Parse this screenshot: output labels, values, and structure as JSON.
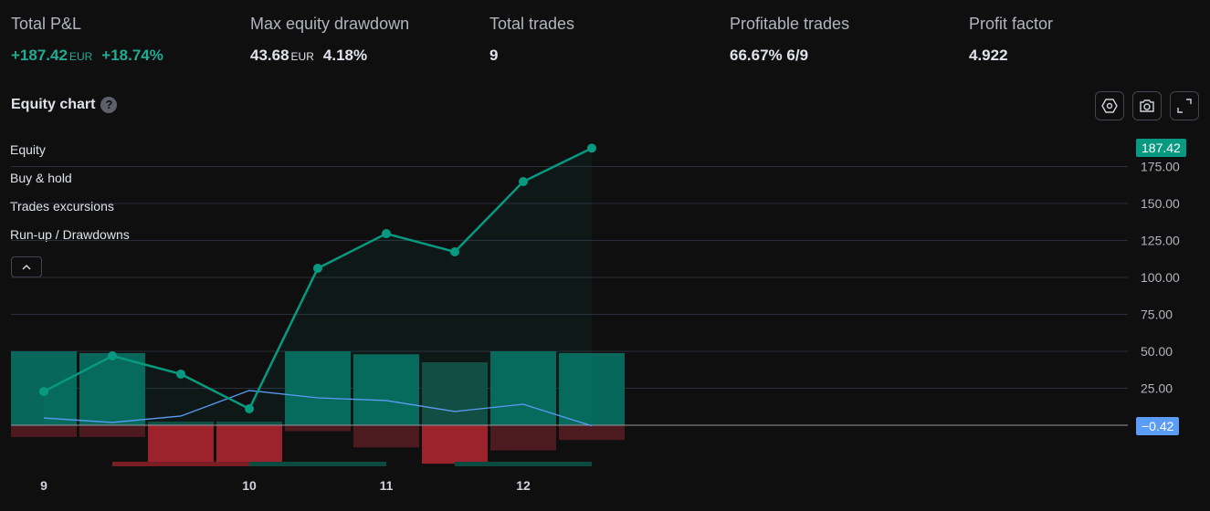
{
  "stats": [
    {
      "label": "Total P&L",
      "value": "+187.42",
      "currency": "EUR",
      "extra": "+18.74%",
      "positive": true
    },
    {
      "label": "Max equity drawdown",
      "value": "43.68",
      "currency": "EUR",
      "extra": "4.18%"
    },
    {
      "label": "Total trades",
      "value": "9"
    },
    {
      "label": "Profitable trades",
      "value": "66.67%",
      "extra": "6/9"
    },
    {
      "label": "Profit factor",
      "value": "4.922"
    }
  ],
  "chart_title": "Equity chart",
  "help": "?",
  "legend": [
    "Equity",
    "Buy & hold",
    "Trades excursions",
    "Run-up / Drawdowns"
  ],
  "badges": {
    "equity": "187.42",
    "buyhold": "−0.42"
  },
  "colors": {
    "equity": "#089981",
    "buyhold": "#5b9cf6",
    "runup": "#06675a",
    "runup_loss": "#124a40",
    "dd": "#4d1a1f",
    "dd_loss": "#9c222b"
  },
  "chart_data": {
    "type": "line",
    "x_labels": [
      {
        "i": 0,
        "label": "9"
      },
      {
        "i": 3,
        "label": "10"
      },
      {
        "i": 5,
        "label": "11"
      },
      {
        "i": 7,
        "label": "12"
      }
    ],
    "y_ticks": [
      "175.00",
      "150.00",
      "125.00",
      "100.00",
      "75.00",
      "50.00",
      "25.00"
    ],
    "y_tick_values": [
      175,
      150,
      125,
      100,
      75,
      50,
      25
    ],
    "ylim": [
      -35,
      195
    ],
    "equity": [
      22.8,
      46.9,
      34.6,
      11.1,
      106.2,
      129.6,
      117.3,
      164.8,
      187.42
    ],
    "buy_hold": [
      4.9,
      1.9,
      6.2,
      23.5,
      18.5,
      16.7,
      9.3,
      14.2,
      -0.42
    ],
    "runup": [
      50,
      48.8,
      2.5,
      2.5,
      50,
      48,
      42.6,
      50,
      48.8
    ],
    "drawdown": [
      -8,
      -8,
      -26,
      -26,
      -4,
      -15,
      -26,
      -17,
      -10
    ],
    "losing": [
      false,
      false,
      true,
      true,
      false,
      false,
      true,
      false,
      false
    ],
    "periods": [
      {
        "from": 1,
        "to": 3,
        "kind": "drawdown"
      },
      {
        "from": 3,
        "to": 5,
        "kind": "runup"
      },
      {
        "from": 6,
        "to": 8,
        "kind": "runup"
      }
    ]
  }
}
